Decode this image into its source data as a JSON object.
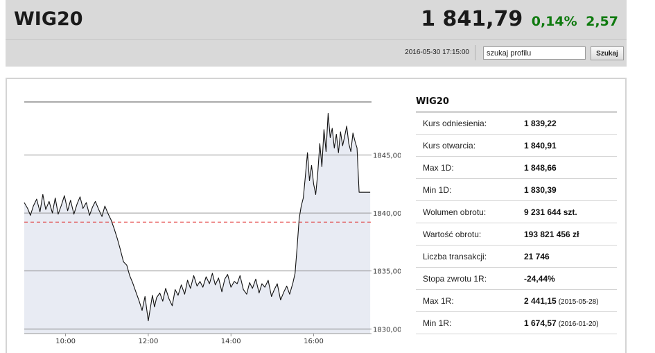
{
  "header": {
    "ticker": "WIG20",
    "price": "1 841,79",
    "change_pct": "0,14%",
    "change_abs": "2,57",
    "change_color": "#0f7a0f",
    "timestamp": "2016-05-30 17:15:00",
    "search": {
      "value": "szukaj profilu",
      "button_label": "Szukaj"
    }
  },
  "info": {
    "title": "WIG20",
    "rows": [
      {
        "label": "Kurs odniesienia:",
        "value": "1 839,22",
        "note": ""
      },
      {
        "label": "Kurs otwarcia:",
        "value": "1 840,91",
        "note": ""
      },
      {
        "label": "Max 1D:",
        "value": "1 848,66",
        "note": ""
      },
      {
        "label": "Min 1D:",
        "value": "1 830,39",
        "note": ""
      },
      {
        "label": "Wolumen obrotu:",
        "value": "9 231 644 szt.",
        "note": ""
      },
      {
        "label": "Wartość obrotu:",
        "value": "193 821 456 zł",
        "note": ""
      },
      {
        "label": "Liczba transakcji:",
        "value": "21 746",
        "note": ""
      },
      {
        "label": "Stopa zwrotu 1R:",
        "value": "-24,44%",
        "note": ""
      },
      {
        "label": "Max 1R:",
        "value": "2 441,15",
        "note": "(2015-05-28)"
      },
      {
        "label": "Min 1R:",
        "value": "1 674,57",
        "note": "(2016-01-20)"
      }
    ]
  },
  "chart_data": {
    "type": "area",
    "x_unit": "time (hours)",
    "x_ticks": [
      10,
      12,
      14,
      16
    ],
    "x_tick_labels": [
      "10:00",
      "12:00",
      "14:00",
      "16:00"
    ],
    "y_ticks": [
      1830,
      1835,
      1840,
      1845
    ],
    "y_tick_labels": [
      "1830,00",
      "1835,00",
      "1840,00",
      "1845,00"
    ],
    "xlim": [
      9.0,
      17.4
    ],
    "ylim": [
      1829.6,
      1850.0
    ],
    "reference_line": {
      "value": 1839.22,
      "color": "#e03030",
      "style": "dashed"
    },
    "line_color": "#111111",
    "fill_color": "#e8ebf3",
    "grid": "horizontal",
    "series": [
      {
        "x": [
          9.0,
          9.08,
          9.15,
          9.22,
          9.3,
          9.38,
          9.45,
          9.52,
          9.6,
          9.68,
          9.75,
          9.82,
          9.9,
          9.97,
          10.05,
          10.12,
          10.2,
          10.28,
          10.35,
          10.42,
          10.5,
          10.58,
          10.65,
          10.72,
          10.8,
          10.88,
          10.95,
          11.02,
          11.1,
          11.18,
          11.25,
          11.32,
          11.4,
          11.48,
          11.55,
          11.62,
          11.7,
          11.78,
          11.85,
          11.92,
          12.0,
          12.05,
          12.1,
          12.15,
          12.2,
          12.28,
          12.35,
          12.42,
          12.5,
          12.58,
          12.65,
          12.72,
          12.8,
          12.88,
          12.95,
          13.02,
          13.1,
          13.18,
          13.25,
          13.32,
          13.4,
          13.48,
          13.55,
          13.62,
          13.7,
          13.78,
          13.85,
          13.92,
          14.0,
          14.08,
          14.15,
          14.22,
          14.3,
          14.38,
          14.45,
          14.52,
          14.6,
          14.68,
          14.75,
          14.82,
          14.9,
          14.98,
          15.05,
          15.12,
          15.2,
          15.28,
          15.35,
          15.42,
          15.5,
          15.55,
          15.6,
          15.65,
          15.7,
          15.75,
          15.8,
          15.85,
          15.9,
          15.95,
          16.0,
          16.05,
          16.1,
          16.15,
          16.2,
          16.25,
          16.3,
          16.35,
          16.4,
          16.45,
          16.5,
          16.55,
          16.6,
          16.65,
          16.7,
          16.75,
          16.8,
          16.85,
          16.9,
          16.95,
          17.0,
          17.05,
          17.1
        ],
        "y": [
          1840.9,
          1840.4,
          1839.8,
          1840.6,
          1841.2,
          1840.1,
          1841.6,
          1840.3,
          1841.0,
          1840.0,
          1841.3,
          1839.9,
          1840.7,
          1841.5,
          1840.2,
          1841.1,
          1839.9,
          1840.8,
          1841.4,
          1840.4,
          1840.9,
          1839.8,
          1840.5,
          1841.0,
          1840.3,
          1839.7,
          1840.6,
          1840.0,
          1839.4,
          1838.6,
          1837.8,
          1836.9,
          1835.8,
          1835.5,
          1834.6,
          1834.0,
          1833.2,
          1832.4,
          1831.6,
          1832.8,
          1830.7,
          1831.8,
          1832.9,
          1831.9,
          1832.7,
          1833.1,
          1832.4,
          1833.5,
          1832.6,
          1832.0,
          1833.4,
          1832.9,
          1833.8,
          1833.0,
          1834.2,
          1833.5,
          1834.6,
          1833.7,
          1834.1,
          1833.6,
          1834.5,
          1833.9,
          1834.8,
          1833.8,
          1834.4,
          1833.2,
          1834.3,
          1834.7,
          1833.6,
          1834.1,
          1833.9,
          1834.6,
          1833.4,
          1833.0,
          1834.0,
          1833.5,
          1834.3,
          1833.1,
          1833.9,
          1833.6,
          1834.2,
          1832.8,
          1833.4,
          1833.9,
          1832.5,
          1833.2,
          1833.7,
          1833.0,
          1834.0,
          1834.8,
          1837.0,
          1839.5,
          1840.6,
          1841.3,
          1843.2,
          1845.2,
          1842.8,
          1844.1,
          1842.5,
          1841.6,
          1843.5,
          1846.0,
          1844.0,
          1847.2,
          1845.3,
          1848.6,
          1846.5,
          1847.3,
          1845.6,
          1846.8,
          1845.2,
          1847.0,
          1845.8,
          1846.6,
          1847.5,
          1846.0,
          1845.3,
          1846.9,
          1846.2,
          1845.6,
          1841.8
        ]
      }
    ],
    "last_value": 1841.79
  }
}
